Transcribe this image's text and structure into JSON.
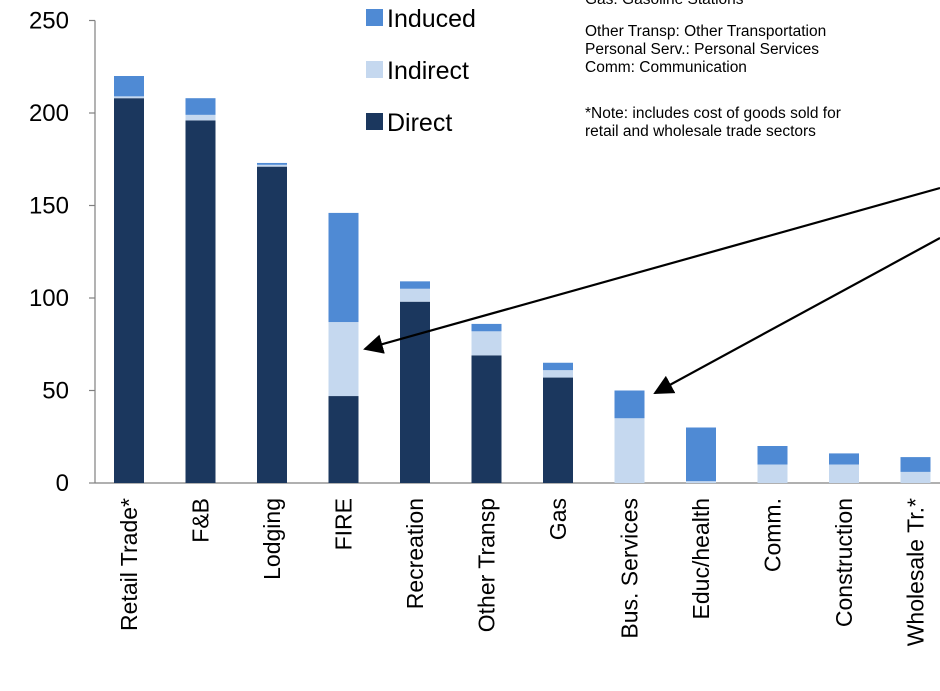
{
  "chart_data": {
    "type": "bar",
    "stacked": true,
    "categories": [
      "Retail Trade*",
      "F&B",
      "Lodging",
      "FIRE",
      "Recreation",
      "Other Transp",
      "Gas",
      "Bus. Services",
      "Educ/health",
      "Comm.",
      "Construction",
      "Wholesale Tr.*"
    ],
    "series": [
      {
        "name": "Direct",
        "color": "#1b375e",
        "values": [
          208,
          196,
          171,
          47,
          98,
          69,
          57,
          0,
          0,
          0,
          0,
          0
        ]
      },
      {
        "name": "Indirect",
        "color": "#c5d8ef",
        "values": [
          1,
          3,
          1,
          40,
          7,
          13,
          4,
          35,
          1,
          10,
          10,
          6
        ]
      },
      {
        "name": "Induced",
        "color": "#4f8ad4",
        "values": [
          11,
          9,
          1,
          59,
          4,
          4,
          4,
          15,
          29,
          10,
          6,
          8
        ]
      }
    ],
    "ylim": [
      0,
      250
    ],
    "yticks": [
      0,
      50,
      100,
      150,
      200,
      250
    ],
    "grid": false,
    "legend": {
      "position": "top-center",
      "order": [
        "Induced",
        "Indirect",
        "Direct"
      ]
    },
    "notes": [
      "Gas: Gasoline Stations",
      "Other Transp: Other Transportation",
      "Personal Serv.: Personal Services",
      "Comm: Communication",
      "*Note: includes cost of goods sold for",
      "retail and wholesale trade sectors"
    ],
    "arrows": [
      {
        "to_category": "FIRE"
      },
      {
        "to_category": "Bus. Services"
      }
    ]
  }
}
